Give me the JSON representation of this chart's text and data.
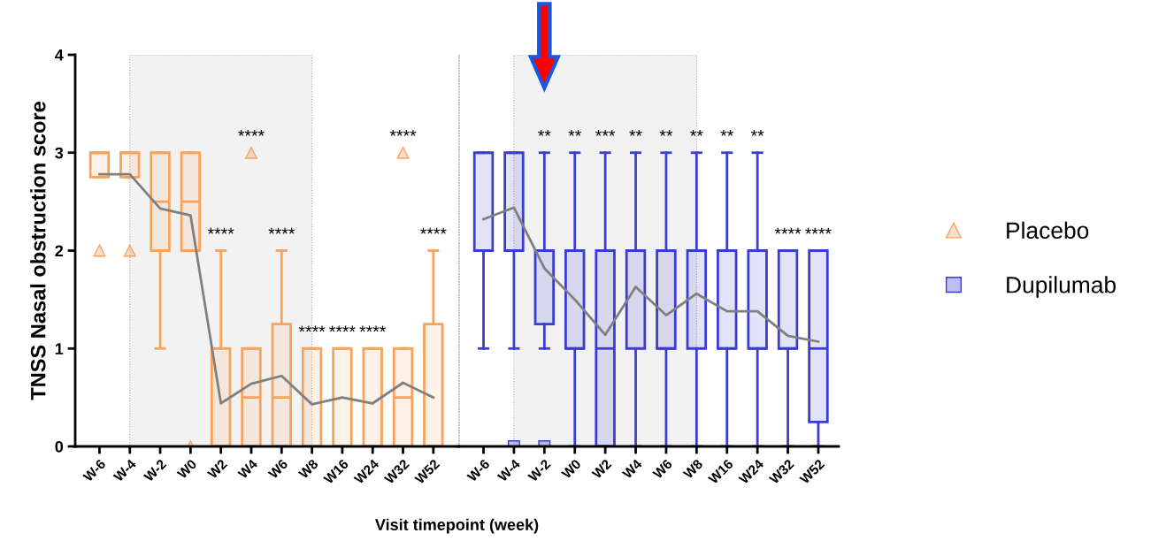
{
  "chart_data": [
    {
      "type": "box",
      "ylabel": "TNSS Nasal obstruction score",
      "xlabel": "Visit timepoint (week)",
      "categories": [
        "W-6",
        "W-4",
        "W-2",
        "W0",
        "W2",
        "W4",
        "W6",
        "W8",
        "W16",
        "W24",
        "W32",
        "W52"
      ],
      "ylim": [
        0,
        4
      ],
      "yticks": [
        0,
        1,
        2,
        3,
        4
      ],
      "grid": false,
      "bands": [
        {
          "axis": "x",
          "from": "W-4",
          "to": "W8",
          "color": "#f2f2f2"
        }
      ],
      "series": [
        {
          "name": "Placebo",
          "color": "#f7a35c",
          "marker": "triangle",
          "boxes": [
            {
              "low": 2.75,
              "q1": 2.75,
              "median": 3,
              "q3": 3,
              "high": 3,
              "outliers": [
                2
              ]
            },
            {
              "low": 2.75,
              "q1": 2.75,
              "median": 3,
              "q3": 3,
              "high": 3,
              "outliers": [
                2
              ]
            },
            {
              "low": 1,
              "q1": 2,
              "median": 2.5,
              "q3": 3,
              "high": 3
            },
            {
              "low": 2,
              "q1": 2,
              "median": 2.5,
              "q3": 3,
              "high": 3,
              "outliers": [
                0
              ]
            },
            {
              "low": 0,
              "q1": 0,
              "median": 0,
              "q3": 1,
              "high": 2
            },
            {
              "low": 0,
              "q1": 0,
              "median": 0.5,
              "q3": 1,
              "high": 1,
              "outliers": [
                3
              ]
            },
            {
              "low": 0,
              "q1": 0,
              "median": 0.5,
              "q3": 1.25,
              "high": 2
            },
            {
              "low": 0,
              "q1": 0,
              "median": 0,
              "q3": 1,
              "high": 1
            },
            {
              "low": 0,
              "q1": 0,
              "median": 0,
              "q3": 1,
              "high": 1
            },
            {
              "low": 0,
              "q1": 0,
              "median": 0,
              "q3": 1,
              "high": 1
            },
            {
              "low": 0,
              "q1": 0,
              "median": 0.5,
              "q3": 1,
              "high": 1,
              "outliers": [
                3
              ]
            },
            {
              "low": 0,
              "q1": 0,
              "median": 0,
              "q3": 1.25,
              "high": 2
            }
          ],
          "value_labels": [
            null,
            null,
            null,
            null,
            "****",
            "****",
            "****",
            "****",
            "****",
            "****",
            "****",
            "****"
          ]
        },
        {
          "type": "line",
          "color": "#808080",
          "values": [
            2.78,
            2.78,
            2.43,
            2.36,
            0.44,
            0.64,
            0.72,
            0.43,
            0.5,
            0.44,
            0.65,
            0.5
          ]
        }
      ]
    },
    {
      "type": "box",
      "legend": "right",
      "tick_labels": "x",
      "categories": [
        "W-6",
        "W-4",
        "W-2",
        "W0",
        "W2",
        "W4",
        "W6",
        "W8",
        "W16",
        "W24",
        "W32",
        "W52"
      ],
      "ylim": [
        0,
        4
      ],
      "grid": false,
      "bands": [
        {
          "axis": "x",
          "from": "W-4",
          "to": "W8",
          "color": "#f2f2f2"
        }
      ],
      "series": [
        {
          "name": "Dupilumab",
          "color": "#3b3bd6",
          "marker": "square",
          "boxes": [
            {
              "low": 1,
              "q1": 2,
              "median": 2,
              "q3": 3,
              "high": 3
            },
            {
              "low": 1,
              "q1": 2,
              "median": 2,
              "q3": 3,
              "high": 3,
              "outliers": [
                0
              ]
            },
            {
              "low": 1,
              "q1": 1.25,
              "median": 2,
              "q3": 2,
              "high": 3,
              "outliers": [
                0
              ]
            },
            {
              "low": 0,
              "q1": 1,
              "median": 1,
              "q3": 2,
              "high": 3
            },
            {
              "low": 0,
              "q1": 0,
              "median": 1,
              "q3": 2,
              "high": 3
            },
            {
              "low": 0,
              "q1": 1,
              "median": 2,
              "q3": 2,
              "high": 3
            },
            {
              "low": 0,
              "q1": 1,
              "median": 1,
              "q3": 2,
              "high": 3
            },
            {
              "low": 0,
              "q1": 1,
              "median": 2,
              "q3": 2,
              "high": 3
            },
            {
              "low": 0,
              "q1": 1,
              "median": 1,
              "q3": 2,
              "high": 3
            },
            {
              "low": 0,
              "q1": 1,
              "median": 1,
              "q3": 2,
              "high": 3
            },
            {
              "low": 0,
              "q1": 1,
              "median": 1,
              "q3": 2,
              "high": 2
            },
            {
              "low": 0,
              "q1": 0.25,
              "median": 1,
              "q3": 2,
              "high": 2
            }
          ],
          "value_labels": [
            null,
            null,
            "**",
            "**",
            "***",
            "**",
            "**",
            "**",
            "**",
            "**",
            "****",
            "****"
          ]
        },
        {
          "type": "line",
          "color": "#808080",
          "values": [
            2.32,
            2.44,
            1.82,
            1.5,
            1.14,
            1.63,
            1.34,
            1.56,
            1.38,
            1.38,
            1.13,
            1.07
          ]
        }
      ]
    }
  ]
}
